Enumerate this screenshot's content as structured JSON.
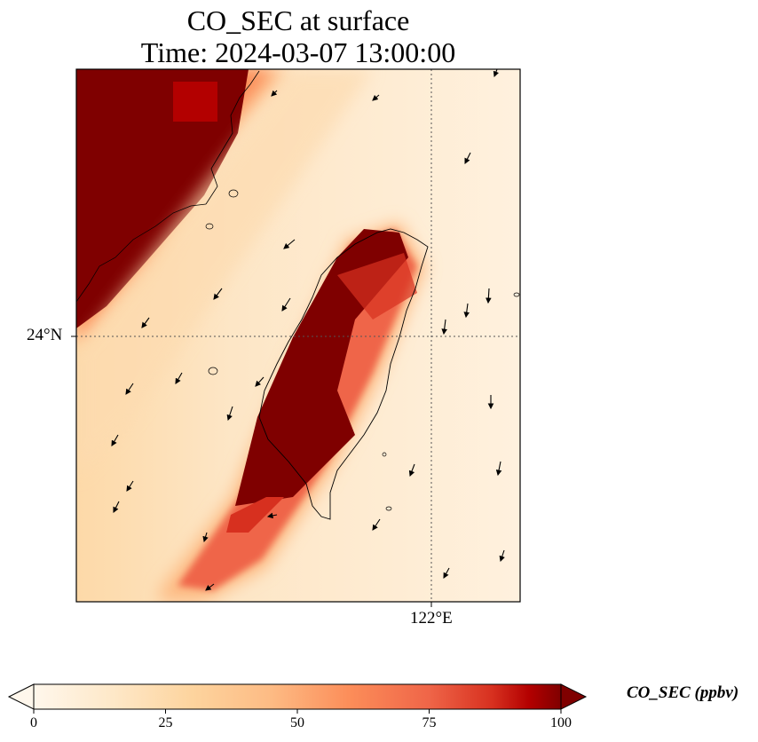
{
  "title": {
    "line1": "CO_SEC at surface",
    "line2": "Time: 2024-03-07 13:00:00"
  },
  "axes": {
    "lat_label": "24°N",
    "lon_label": "122°E",
    "gridlines": "dotted"
  },
  "colorbar": {
    "label": "CO_SEC (ppbv)",
    "colormap": "OrRd",
    "min": 0,
    "max": 100,
    "ticks": [
      "0",
      "25",
      "50",
      "75",
      "100"
    ],
    "extend": "both"
  },
  "colors": {
    "low": "#fff7ec",
    "high": "#7f0000",
    "coastline": "#000000"
  }
}
